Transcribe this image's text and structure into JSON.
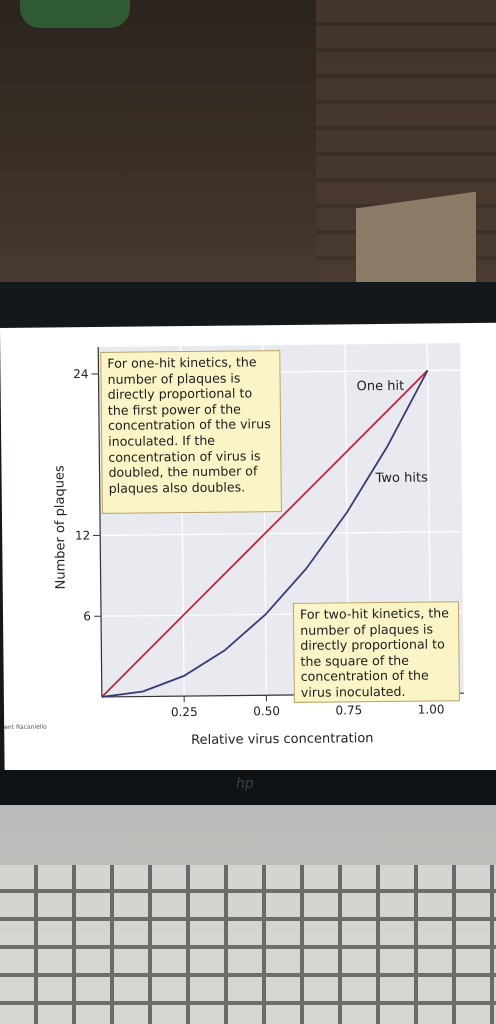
{
  "chart_data": {
    "type": "line",
    "x": [
      0,
      0.125,
      0.25,
      0.375,
      0.5,
      0.625,
      0.75,
      0.875,
      1.0
    ],
    "series": [
      {
        "name": "One hit",
        "color": "#c4263c",
        "values": [
          0,
          3,
          6,
          9,
          12,
          15,
          18,
          21,
          24
        ]
      },
      {
        "name": "Two hits",
        "color": "#3a3a78",
        "values": [
          0,
          0.375,
          1.5,
          3.375,
          6,
          9.375,
          13.5,
          18.375,
          24
        ]
      }
    ],
    "xlabel": "Relative virus concentration",
    "ylabel": "Number of plaques",
    "x_ticks": [
      "0.25",
      "0.50",
      "0.75",
      "1.00"
    ],
    "y_ticks": [
      "6",
      "12",
      "24"
    ],
    "xlim": [
      0,
      1.1
    ],
    "ylim": [
      0,
      26
    ],
    "grid": true,
    "annotations": [
      "For one-hit kinetics, the number of plaques is directly proportional to the first power of the concentration of the virus inoculated. If the concentration of virus is doubled, the number of plaques also doubles.",
      "For two-hit kinetics, the number of plaques is directly proportional to the square of the concentration of the virus inoculated."
    ]
  },
  "credit": "ent Racaniello",
  "brand": "hp"
}
